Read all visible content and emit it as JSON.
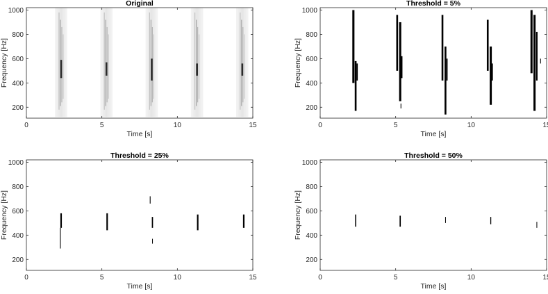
{
  "chart_data": [
    {
      "type": "heatmap",
      "title": "Original",
      "xlabel": "Time [s]",
      "ylabel": "Frequency [Hz]",
      "xlim": [
        0,
        15
      ],
      "ylim": [
        110,
        1020
      ],
      "xticks": [
        0,
        5,
        10,
        15
      ],
      "yticks": [
        200,
        400,
        600,
        800,
        1000
      ],
      "grid": false,
      "style": "grayscale-smear",
      "events": [
        {
          "t": 2.3,
          "f_min": 120,
          "f_max": 1020,
          "peak_f_min": 440,
          "peak_f_max": 590
        },
        {
          "t": 5.3,
          "f_min": 120,
          "f_max": 1020,
          "peak_f_min": 460,
          "peak_f_max": 570
        },
        {
          "t": 8.3,
          "f_min": 120,
          "f_max": 1020,
          "peak_f_min": 420,
          "peak_f_max": 600
        },
        {
          "t": 11.3,
          "f_min": 120,
          "f_max": 1020,
          "peak_f_min": 460,
          "peak_f_max": 560
        },
        {
          "t": 14.3,
          "f_min": 120,
          "f_max": 1020,
          "peak_f_min": 460,
          "peak_f_max": 560
        }
      ]
    },
    {
      "type": "heatmap",
      "title": "Threshold = 5%",
      "xlabel": "Time [s]",
      "ylabel": "Frequency [Hz]",
      "xlim": [
        0,
        15
      ],
      "ylim": [
        110,
        1020
      ],
      "xticks": [
        0,
        5,
        10,
        15
      ],
      "yticks": [
        200,
        400,
        600,
        800,
        1000
      ],
      "grid": false,
      "style": "binary",
      "segments": [
        {
          "t": 2.2,
          "f_min": 400,
          "f_max": 1000,
          "w": 0.14
        },
        {
          "t": 2.35,
          "f_min": 170,
          "f_max": 580,
          "w": 0.12
        },
        {
          "t": 2.45,
          "f_min": 420,
          "f_max": 560,
          "w": 0.08
        },
        {
          "t": 5.1,
          "f_min": 500,
          "f_max": 960,
          "w": 0.12
        },
        {
          "t": 5.3,
          "f_min": 250,
          "f_max": 900,
          "w": 0.14
        },
        {
          "t": 5.4,
          "f_min": 440,
          "f_max": 620,
          "w": 0.1
        },
        {
          "t": 5.35,
          "f_min": 190,
          "f_max": 230,
          "w": 0.05
        },
        {
          "t": 8.1,
          "f_min": 420,
          "f_max": 960,
          "w": 0.12
        },
        {
          "t": 8.3,
          "f_min": 140,
          "f_max": 700,
          "w": 0.12
        },
        {
          "t": 8.4,
          "f_min": 420,
          "f_max": 600,
          "w": 0.08
        },
        {
          "t": 11.1,
          "f_min": 500,
          "f_max": 920,
          "w": 0.12
        },
        {
          "t": 11.3,
          "f_min": 220,
          "f_max": 700,
          "w": 0.14
        },
        {
          "t": 11.4,
          "f_min": 420,
          "f_max": 560,
          "w": 0.08
        },
        {
          "t": 14.0,
          "f_min": 480,
          "f_max": 1000,
          "w": 0.14
        },
        {
          "t": 14.2,
          "f_min": 170,
          "f_max": 960,
          "w": 0.14
        },
        {
          "t": 14.35,
          "f_min": 420,
          "f_max": 820,
          "w": 0.1
        },
        {
          "t": 14.6,
          "f_min": 560,
          "f_max": 600,
          "w": 0.05
        }
      ]
    },
    {
      "type": "heatmap",
      "title": "Threshold = 25%",
      "xlabel": "Time [s]",
      "ylabel": "Frequency [Hz]",
      "xlim": [
        0,
        15
      ],
      "ylim": [
        110,
        1020
      ],
      "xticks": [
        0,
        5,
        10,
        15
      ],
      "yticks": [
        200,
        400,
        600,
        800,
        1000
      ],
      "grid": false,
      "style": "binary",
      "segments": [
        {
          "t": 2.3,
          "f_min": 460,
          "f_max": 580,
          "w": 0.1
        },
        {
          "t": 2.25,
          "f_min": 290,
          "f_max": 460,
          "w": 0.05
        },
        {
          "t": 5.35,
          "f_min": 440,
          "f_max": 580,
          "w": 0.1
        },
        {
          "t": 8.2,
          "f_min": 660,
          "f_max": 720,
          "w": 0.05
        },
        {
          "t": 8.35,
          "f_min": 460,
          "f_max": 550,
          "w": 0.08
        },
        {
          "t": 8.35,
          "f_min": 330,
          "f_max": 370,
          "w": 0.04
        },
        {
          "t": 11.35,
          "f_min": 440,
          "f_max": 570,
          "w": 0.1
        },
        {
          "t": 14.4,
          "f_min": 460,
          "f_max": 570,
          "w": 0.1
        }
      ]
    },
    {
      "type": "heatmap",
      "title": "Threshold = 50%",
      "xlabel": "Time [s]",
      "ylabel": "Frequency [Hz]",
      "xlim": [
        0,
        15
      ],
      "ylim": [
        110,
        1020
      ],
      "xticks": [
        0,
        5,
        10,
        15
      ],
      "yticks": [
        200,
        400,
        600,
        800,
        1000
      ],
      "grid": false,
      "style": "binary",
      "segments": [
        {
          "t": 2.35,
          "f_min": 470,
          "f_max": 570,
          "w": 0.07
        },
        {
          "t": 5.3,
          "f_min": 470,
          "f_max": 560,
          "w": 0.08
        },
        {
          "t": 8.3,
          "f_min": 500,
          "f_max": 550,
          "w": 0.04
        },
        {
          "t": 11.3,
          "f_min": 490,
          "f_max": 550,
          "w": 0.06
        },
        {
          "t": 14.35,
          "f_min": 460,
          "f_max": 510,
          "w": 0.04
        }
      ]
    }
  ]
}
